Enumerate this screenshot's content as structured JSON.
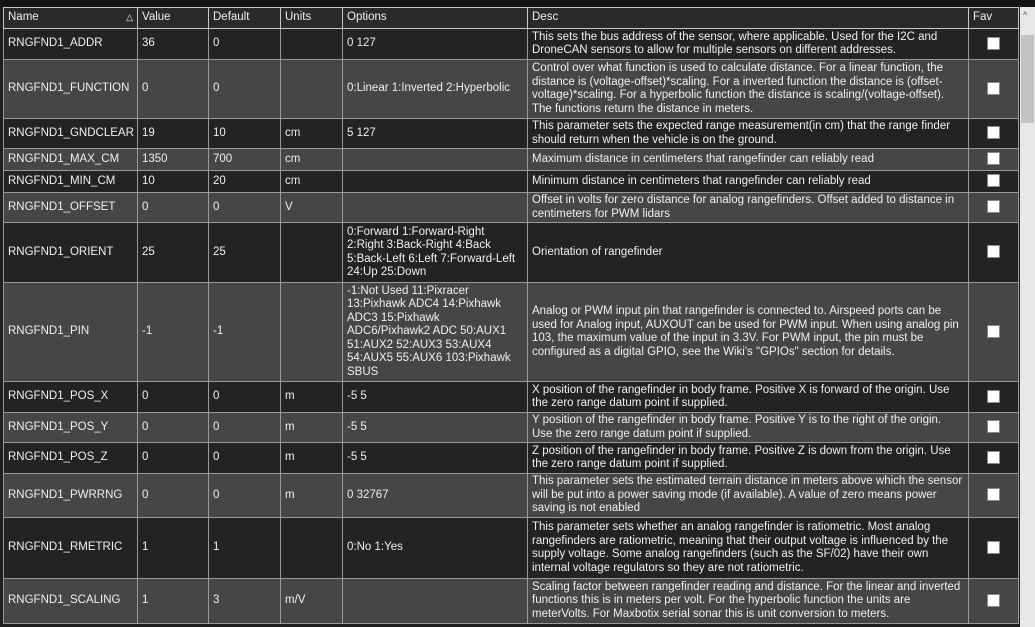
{
  "columns": {
    "name": "Name",
    "value": "Value",
    "default": "Default",
    "units": "Units",
    "options": "Options",
    "desc": "Desc",
    "fav": "Fav"
  },
  "rows": [
    {
      "name": "RNGFND1_ADDR",
      "value": "36",
      "default": "0",
      "units": "",
      "options": "0 127",
      "desc": "This sets the bus address of the sensor, where applicable. Used for the I2C and DroneCAN sensors to allow for multiple sensors on different addresses.",
      "fav": false
    },
    {
      "name": "RNGFND1_FUNCTION",
      "value": "0",
      "default": "0",
      "units": "",
      "options": "0:Linear 1:Inverted 2:Hyperbolic",
      "desc": "Control over what function is used to calculate distance. For a linear function, the distance is (voltage-offset)*scaling. For a inverted function the distance is (offset-voltage)*scaling. For a hyperbolic function the distance is scaling/(voltage-offset). The functions return the distance in meters.",
      "fav": false
    },
    {
      "name": "RNGFND1_GNDCLEAR",
      "value": "19",
      "default": "10",
      "units": "cm",
      "options": "5 127",
      "desc": "This parameter sets the expected range measurement(in cm) that the range finder should return when the vehicle is on the ground.",
      "fav": false
    },
    {
      "name": "RNGFND1_MAX_CM",
      "value": "1350",
      "default": "700",
      "units": "cm",
      "options": "",
      "desc": "Maximum distance in centimeters that rangefinder can reliably read",
      "fav": false
    },
    {
      "name": "RNGFND1_MIN_CM",
      "value": "10",
      "default": "20",
      "units": "cm",
      "options": "",
      "desc": "Minimum distance in centimeters that rangefinder can reliably read",
      "fav": false
    },
    {
      "name": "RNGFND1_OFFSET",
      "value": "0",
      "default": "0",
      "units": "V",
      "options": "",
      "desc": "Offset in volts for zero distance for analog rangefinders. Offset added to distance in centimeters for PWM lidars",
      "fav": false
    },
    {
      "name": "RNGFND1_ORIENT",
      "value": "25",
      "default": "25",
      "units": "",
      "options": "0:Forward 1:Forward-Right 2:Right 3:Back-Right 4:Back 5:Back-Left 6:Left 7:Forward-Left 24:Up 25:Down",
      "desc": "Orientation of rangefinder",
      "fav": false
    },
    {
      "name": "RNGFND1_PIN",
      "value": "-1",
      "default": "-1",
      "units": "",
      "options": "-1:Not Used 11:Pixracer 13:Pixhawk ADC4 14:Pixhawk ADC3 15:Pixhawk ADC6/Pixhawk2 ADC 50:AUX1 51:AUX2 52:AUX3 53:AUX4 54:AUX5 55:AUX6 103:Pixhawk SBUS",
      "desc": "Analog or PWM input pin that rangefinder is connected to. Airspeed ports can be used for Analog input, AUXOUT can be used for PWM input. When using analog pin 103, the maximum value of the input in 3.3V. For PWM input, the pin must be configured as a digital GPIO, see the Wiki's \"GPIOs\" section for details.",
      "fav": false
    },
    {
      "name": "RNGFND1_POS_X",
      "value": "0",
      "default": "0",
      "units": "m",
      "options": "-5 5",
      "desc": "X position of the rangefinder in body frame. Positive X is forward of the origin. Use the zero range datum point if supplied.",
      "fav": false
    },
    {
      "name": "RNGFND1_POS_Y",
      "value": "0",
      "default": "0",
      "units": "m",
      "options": "-5 5",
      "desc": "Y position of the rangefinder in body frame. Positive Y is to the right of the origin. Use the zero range datum point if supplied.",
      "fav": false
    },
    {
      "name": "RNGFND1_POS_Z",
      "value": "0",
      "default": "0",
      "units": "m",
      "options": "-5 5",
      "desc": "Z position of the rangefinder in body frame. Positive Z is down from the origin. Use the zero range datum point if supplied.",
      "fav": false
    },
    {
      "name": "RNGFND1_PWRRNG",
      "value": "0",
      "default": "0",
      "units": "m",
      "options": "0 32767",
      "desc": "This parameter sets the estimated terrain distance in meters above which the sensor will be put into a power saving mode (if available). A value of zero means power saving is not enabled",
      "fav": false
    },
    {
      "name": "RNGFND1_RMETRIC",
      "value": "1",
      "default": "1",
      "units": "",
      "options": "0:No 1:Yes",
      "desc": "This parameter sets whether an analog rangefinder is ratiometric. Most analog rangefinders are ratiometric, meaning that their output voltage is influenced by the supply voltage. Some analog rangefinders (such as the SF/02) have their own internal voltage regulators so they are not ratiometric.",
      "fav": false
    },
    {
      "name": "RNGFND1_SCALING",
      "value": "1",
      "default": "3",
      "units": "m/V",
      "options": "",
      "desc": "Scaling factor between rangefinder reading and distance. For the linear and inverted functions this is in meters per volt. For the hyperbolic function the units are meterVolts. For Maxbotix serial sonar this is unit conversion to meters.",
      "fav": false
    }
  ]
}
